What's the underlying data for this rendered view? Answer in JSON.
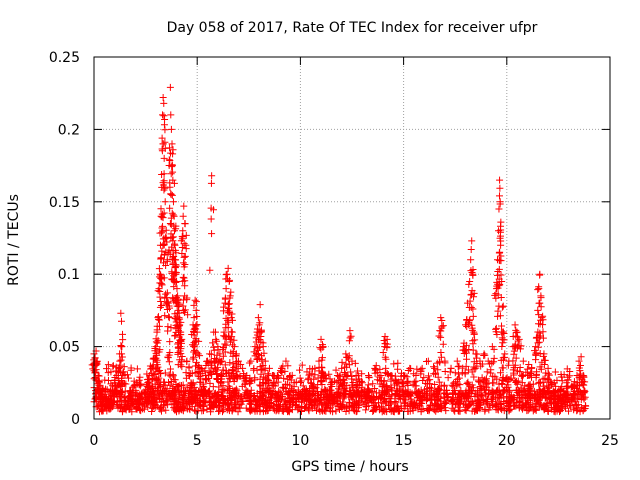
{
  "chart_data": {
    "type": "scatter",
    "title": "Day 058 of 2017, Rate Of TEC Index for receiver ufpr",
    "xlabel": "GPS time / hours",
    "ylabel": "ROTI / TECUs",
    "xlim": [
      0,
      25
    ],
    "ylim": [
      0,
      0.25
    ],
    "xticks": [
      "0",
      "5",
      "10",
      "15",
      "20",
      "25"
    ],
    "yticks": [
      "0",
      "0.05",
      "0.1",
      "0.15",
      "0.2",
      "0.25"
    ],
    "grid": true,
    "marker": "+",
    "marker_color": "#ff0000",
    "series": [
      {
        "points": [
          [
            0.0,
            0.045
          ],
          [
            0.05,
            0.042
          ],
          [
            0.1,
            0.047
          ],
          [
            0.15,
            0.038
          ],
          [
            0.2,
            0.03
          ],
          [
            0.25,
            0.025
          ],
          [
            0.3,
            0.02
          ],
          [
            0.4,
            0.012
          ],
          [
            0.5,
            0.015
          ],
          [
            0.6,
            0.01
          ],
          [
            0.7,
            0.013
          ],
          [
            0.8,
            0.014
          ],
          [
            0.9,
            0.02
          ],
          [
            1.0,
            0.025
          ],
          [
            1.1,
            0.03
          ],
          [
            1.2,
            0.035
          ],
          [
            1.25,
            0.04
          ],
          [
            1.3,
            0.073
          ],
          [
            1.35,
            0.05
          ],
          [
            1.4,
            0.03
          ],
          [
            1.5,
            0.015
          ],
          [
            1.7,
            0.012
          ],
          [
            1.9,
            0.014
          ],
          [
            2.1,
            0.013
          ],
          [
            2.3,
            0.015
          ],
          [
            2.5,
            0.02
          ],
          [
            2.6,
            0.025
          ],
          [
            2.7,
            0.03
          ],
          [
            2.8,
            0.035
          ],
          [
            2.9,
            0.042
          ],
          [
            3.0,
            0.05
          ],
          [
            3.05,
            0.06
          ],
          [
            3.1,
            0.07
          ],
          [
            3.15,
            0.09
          ],
          [
            3.2,
            0.1
          ],
          [
            3.22,
            0.12
          ],
          [
            3.25,
            0.14
          ],
          [
            3.28,
            0.16
          ],
          [
            3.3,
            0.194
          ],
          [
            3.32,
            0.21
          ],
          [
            3.35,
            0.222
          ],
          [
            3.38,
            0.218
          ],
          [
            3.4,
            0.18
          ],
          [
            3.45,
            0.15
          ],
          [
            3.5,
            0.125
          ],
          [
            3.55,
            0.11
          ],
          [
            3.6,
            0.08
          ],
          [
            3.65,
            0.07
          ],
          [
            3.7,
            0.229
          ],
          [
            3.72,
            0.21
          ],
          [
            3.75,
            0.2
          ],
          [
            3.78,
            0.19
          ],
          [
            3.8,
            0.175
          ],
          [
            3.82,
            0.165
          ],
          [
            3.85,
            0.15
          ],
          [
            3.88,
            0.14
          ],
          [
            3.9,
            0.13
          ],
          [
            3.92,
            0.12
          ],
          [
            3.95,
            0.11
          ],
          [
            3.97,
            0.1
          ],
          [
            4.0,
            0.095
          ],
          [
            4.02,
            0.09
          ],
          [
            4.05,
            0.085
          ],
          [
            4.08,
            0.08
          ],
          [
            4.1,
            0.075
          ],
          [
            4.12,
            0.07
          ],
          [
            4.15,
            0.065
          ],
          [
            4.2,
            0.06
          ],
          [
            4.25,
            0.055
          ],
          [
            4.3,
            0.13
          ],
          [
            4.32,
            0.14
          ],
          [
            4.35,
            0.147
          ],
          [
            4.4,
            0.135
          ],
          [
            4.45,
            0.12
          ],
          [
            4.5,
            0.04
          ],
          [
            4.6,
            0.03
          ],
          [
            4.7,
            0.025
          ],
          [
            4.8,
            0.065
          ],
          [
            4.85,
            0.07
          ],
          [
            4.9,
            0.082
          ],
          [
            4.95,
            0.075
          ],
          [
            5.0,
            0.06
          ],
          [
            5.05,
            0.045
          ],
          [
            5.2,
            0.035
          ],
          [
            5.4,
            0.03
          ],
          [
            5.5,
            0.04
          ],
          [
            5.6,
            0.045
          ],
          [
            5.7,
            0.168
          ],
          [
            5.8,
            0.06
          ],
          [
            5.9,
            0.055
          ],
          [
            6.0,
            0.05
          ],
          [
            6.1,
            0.045
          ],
          [
            6.2,
            0.04
          ],
          [
            6.3,
            0.06
          ],
          [
            6.35,
            0.08
          ],
          [
            6.4,
            0.09
          ],
          [
            6.45,
            0.1
          ],
          [
            6.5,
            0.104
          ],
          [
            6.55,
            0.095
          ],
          [
            6.6,
            0.085
          ],
          [
            6.65,
            0.07
          ],
          [
            6.7,
            0.06
          ],
          [
            6.8,
            0.05
          ],
          [
            6.9,
            0.045
          ],
          [
            7.0,
            0.04
          ],
          [
            7.2,
            0.035
          ],
          [
            7.4,
            0.03
          ],
          [
            7.6,
            0.04
          ],
          [
            7.8,
            0.05
          ],
          [
            7.9,
            0.06
          ],
          [
            8.0,
            0.065
          ],
          [
            8.05,
            0.079
          ],
          [
            8.1,
            0.06
          ],
          [
            8.2,
            0.05
          ],
          [
            8.3,
            0.04
          ],
          [
            8.5,
            0.035
          ],
          [
            8.7,
            0.03
          ],
          [
            8.9,
            0.03
          ],
          [
            9.1,
            0.035
          ],
          [
            9.3,
            0.04
          ],
          [
            9.5,
            0.03
          ],
          [
            9.7,
            0.025
          ],
          [
            9.9,
            0.02
          ],
          [
            10.1,
            0.018
          ],
          [
            10.3,
            0.02
          ],
          [
            10.5,
            0.025
          ],
          [
            10.7,
            0.035
          ],
          [
            10.9,
            0.04
          ],
          [
            11.0,
            0.055
          ],
          [
            11.1,
            0.05
          ],
          [
            11.2,
            0.03
          ],
          [
            11.5,
            0.025
          ],
          [
            11.8,
            0.03
          ],
          [
            12.0,
            0.035
          ],
          [
            12.2,
            0.045
          ],
          [
            12.4,
            0.061
          ],
          [
            12.5,
            0.04
          ],
          [
            12.7,
            0.03
          ],
          [
            13.0,
            0.025
          ],
          [
            13.3,
            0.03
          ],
          [
            13.6,
            0.035
          ],
          [
            13.9,
            0.03
          ],
          [
            14.1,
            0.057
          ],
          [
            14.2,
            0.055
          ],
          [
            14.4,
            0.03
          ],
          [
            14.7,
            0.025
          ],
          [
            15.0,
            0.03
          ],
          [
            15.3,
            0.035
          ],
          [
            15.6,
            0.03
          ],
          [
            15.9,
            0.035
          ],
          [
            16.2,
            0.04
          ],
          [
            16.5,
            0.035
          ],
          [
            16.8,
            0.07
          ],
          [
            16.85,
            0.068
          ],
          [
            17.0,
            0.04
          ],
          [
            17.3,
            0.035
          ],
          [
            17.6,
            0.04
          ],
          [
            17.9,
            0.05
          ],
          [
            18.0,
            0.065
          ],
          [
            18.1,
            0.08
          ],
          [
            18.2,
            0.095
          ],
          [
            18.25,
            0.11
          ],
          [
            18.3,
            0.123
          ],
          [
            18.35,
            0.1
          ],
          [
            18.4,
            0.06
          ],
          [
            18.5,
            0.045
          ],
          [
            18.7,
            0.04
          ],
          [
            18.9,
            0.045
          ],
          [
            19.1,
            0.04
          ],
          [
            19.3,
            0.05
          ],
          [
            19.5,
            0.09
          ],
          [
            19.55,
            0.11
          ],
          [
            19.6,
            0.13
          ],
          [
            19.62,
            0.145
          ],
          [
            19.65,
            0.165
          ],
          [
            19.68,
            0.15
          ],
          [
            19.7,
            0.12
          ],
          [
            19.75,
            0.095
          ],
          [
            19.8,
            0.06
          ],
          [
            19.9,
            0.045
          ],
          [
            20.1,
            0.04
          ],
          [
            20.3,
            0.05
          ],
          [
            20.4,
            0.065
          ],
          [
            20.5,
            0.06
          ],
          [
            20.6,
            0.055
          ],
          [
            20.8,
            0.04
          ],
          [
            21.0,
            0.03
          ],
          [
            21.2,
            0.035
          ],
          [
            21.4,
            0.05
          ],
          [
            21.5,
            0.075
          ],
          [
            21.55,
            0.09
          ],
          [
            21.6,
            0.1
          ],
          [
            21.65,
            0.085
          ],
          [
            21.7,
            0.07
          ],
          [
            21.8,
            0.045
          ],
          [
            22.0,
            0.035
          ],
          [
            22.3,
            0.025
          ],
          [
            22.6,
            0.02
          ],
          [
            22.9,
            0.025
          ],
          [
            23.2,
            0.022
          ],
          [
            23.4,
            0.03
          ],
          [
            23.5,
            0.04
          ],
          [
            23.6,
            0.043
          ],
          [
            23.7,
            0.03
          ],
          [
            23.8,
            0.015
          ]
        ],
        "baseline": {
          "x_range": [
            0,
            23.8
          ],
          "y_range": [
            0.005,
            0.02
          ]
        }
      }
    ]
  }
}
